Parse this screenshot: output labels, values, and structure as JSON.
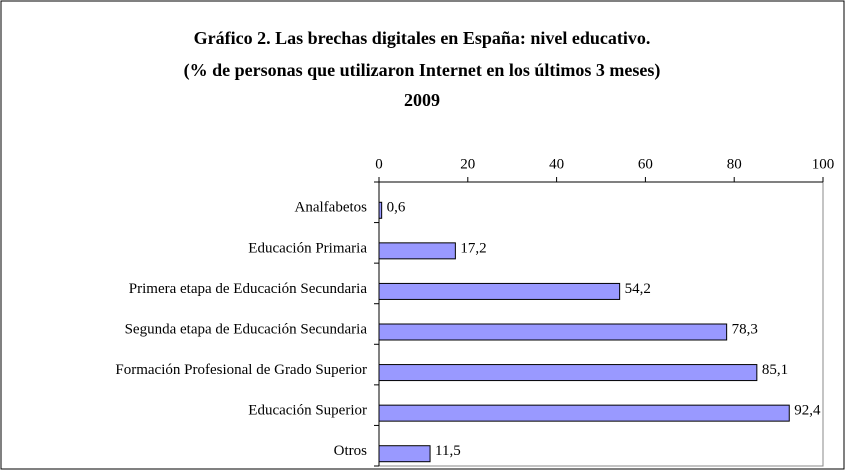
{
  "chart_data": {
    "type": "bar",
    "orientation": "horizontal",
    "title": [
      "Gráfico 2. Las brechas digitales en España: nivel educativo.",
      "(% de personas que utilizaron Internet en los últimos 3 meses)",
      "2009"
    ],
    "categories": [
      "Analfabetos",
      "Educación Primaria",
      "Primera etapa de Educación Secundaria",
      "Segunda etapa de Educación Secundaria",
      "Formación Profesional de Grado Superior",
      "Educación Superior",
      "Otros"
    ],
    "values": [
      0.6,
      17.2,
      54.2,
      78.3,
      85.1,
      92.4,
      11.5
    ],
    "value_labels": [
      "0,6",
      "17,2",
      "54,2",
      "78,3",
      "85,1",
      "92,4",
      "11,5"
    ],
    "color": "#9999ff",
    "xlim": [
      0,
      100
    ],
    "xticks": [
      0,
      20,
      40,
      60,
      80,
      100
    ],
    "grid": false
  }
}
